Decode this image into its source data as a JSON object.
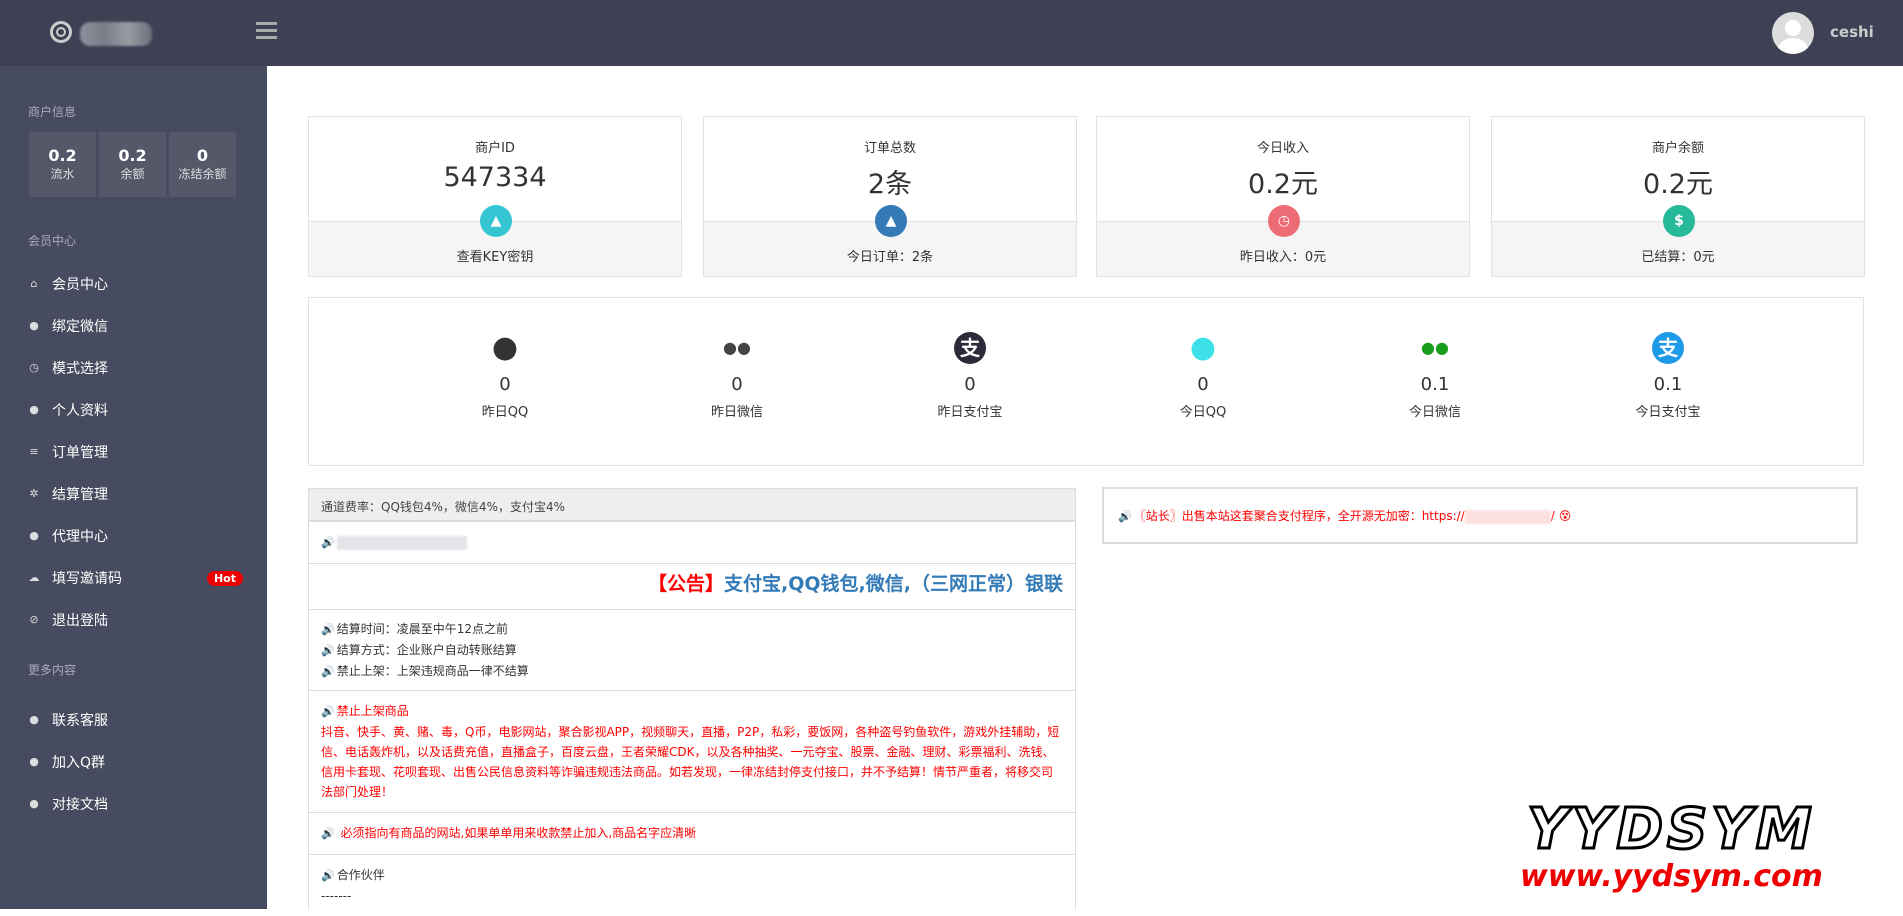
{
  "header": {
    "username": "ceshi"
  },
  "sidebar": {
    "merchant_section": "商户信息",
    "stats": [
      {
        "value": "0.2",
        "label": "流水"
      },
      {
        "value": "0.2",
        "label": "余额"
      },
      {
        "value": "0",
        "label": "冻结余额"
      }
    ],
    "member_section": "会员中心",
    "items": [
      {
        "label": "会员中心",
        "icon": "home-icon",
        "glyph": "⌂"
      },
      {
        "label": "绑定微信",
        "icon": "wechat-icon",
        "glyph": "●"
      },
      {
        "label": "模式选择",
        "icon": "clock-icon",
        "glyph": "◷"
      },
      {
        "label": "个人资料",
        "icon": "user-icon",
        "glyph": "●"
      },
      {
        "label": "订单管理",
        "icon": "list-icon",
        "glyph": "≡"
      },
      {
        "label": "结算管理",
        "icon": "gears-icon",
        "glyph": "✲"
      },
      {
        "label": "代理中心",
        "icon": "users-icon",
        "glyph": "●"
      },
      {
        "label": "填写邀请码",
        "icon": "cloud-icon",
        "glyph": "☁",
        "badge": "Hot"
      },
      {
        "label": "退出登陆",
        "icon": "ban-icon",
        "glyph": "⊘"
      }
    ],
    "more_section": "更多内容",
    "more_items": [
      {
        "label": "联系客服",
        "icon": "bell-icon",
        "glyph": "●"
      },
      {
        "label": "加入Q群",
        "icon": "users-icon",
        "glyph": "●"
      },
      {
        "label": "对接文档",
        "icon": "users-icon",
        "glyph": "●"
      }
    ]
  },
  "cards": [
    {
      "title": "商户ID",
      "value": "547334",
      "footer": "查看KEY密钥",
      "icon": "user-icon",
      "color": "#36c6d3",
      "glyph": "▲"
    },
    {
      "title": "订单总数",
      "value": "2条",
      "footer": "今日订单：2条",
      "icon": "area-chart-icon",
      "color": "#337ab7",
      "glyph": "▲"
    },
    {
      "title": "今日收入",
      "value": "0.2元",
      "footer": "昨日收入：0元",
      "icon": "clock-icon",
      "color": "#ed6b75",
      "glyph": "◷"
    },
    {
      "title": "商户余额",
      "value": "0.2元",
      "footer": "已结算：0元",
      "icon": "dollar-icon",
      "color": "#26b99a",
      "glyph": "$"
    }
  ],
  "channels": [
    {
      "value": "0",
      "label": "昨日QQ",
      "icon": "qq-icon",
      "color": "#333"
    },
    {
      "value": "0",
      "label": "昨日微信",
      "icon": "wechat-icon",
      "color": "#444"
    },
    {
      "value": "0",
      "label": "昨日支付宝",
      "icon": "alipay-icon",
      "color": "#2b2b3a"
    },
    {
      "value": "0",
      "label": "今日QQ",
      "icon": "qq-icon",
      "color": "#3ee0e8"
    },
    {
      "value": "0.1",
      "label": "今日微信",
      "icon": "wechat-icon",
      "color": "#1a9d1a"
    },
    {
      "value": "0.1",
      "label": "今日支付宝",
      "icon": "alipay-icon",
      "color": "#1e9be8"
    }
  ],
  "notice": {
    "rate": "通道费率：QQ钱包4%，微信4%，支付宝4%",
    "marquee_prefix": "【公告】",
    "marquee_text": "支付宝,QQ钱包,微信,（三网正常）银联",
    "settle": [
      "结算时间：凌晨至中午12点之前",
      "结算方式：企业账户自动转账结算",
      "禁止上架：上架违规商品一律不结算"
    ],
    "banned_title": "禁止上架商品",
    "banned_text": "抖音、快手、黄、赌、毒，Q币，电影网站，聚合影视APP，视频聊天，直播，P2P，私彩，要饭网，各种盗号钓鱼软件，游戏外挂辅助，短信、电话轰炸机，以及话费充值，直播盒子，百度云盘，王者荣耀CDK，以及各种抽奖、一元夺宝、股票、金融、理财、彩票福利、洗钱、信用卡套现、花呗套现、出售公民信息资料等诈骗违规违法商品。如若发现，一律冻结封停支付接口，并不予结算！情节严重者，将移交司法部门处理！",
    "must": "必须指向有商品的网站,如果单单用来收款禁止加入,商品名字应清晰",
    "partner": "合作伙伴",
    "partner_sep": "-------"
  },
  "right_notice": {
    "text": "〖站长〗出售本站这套聚合支付程序，全开源无加密：https://",
    "suffix": "/"
  },
  "watermark": {
    "title": "YYDSYM",
    "url": "www.yydsym.com"
  }
}
